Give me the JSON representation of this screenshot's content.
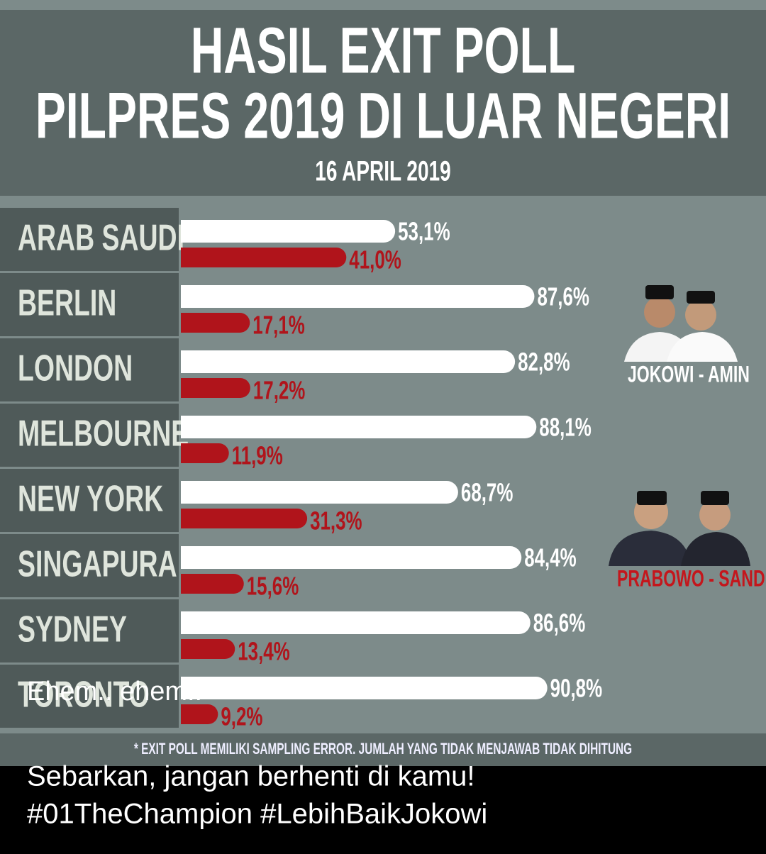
{
  "chart_data": {
    "type": "hbar",
    "title": "HASIL EXIT POLL",
    "subtitle_line": "PILPRES 2019 DI LUAR NEGERI",
    "date": "16 APRIL 2019",
    "footnote": "* EXIT POLL MEMILIKI SAMPLING ERROR. JUMLAH YANG TIDAK MENJAWAB TIDAK DIHITUNG",
    "categories": [
      "ARAB SAUDI",
      "BERLIN",
      "LONDON",
      "MELBOURNE",
      "NEW YORK",
      "SINGAPURA",
      "SYDNEY",
      "TORONTO"
    ],
    "series": [
      {
        "name": "JOKOWI - AMIN",
        "color": "#ffffff",
        "values": [
          53.1,
          87.6,
          82.8,
          88.1,
          68.7,
          84.4,
          86.6,
          90.8
        ],
        "value_labels": [
          "53,1%",
          "87,6%",
          "82,8%",
          "88,1%",
          "68,7%",
          "84,4%",
          "86,6%",
          "90,8%"
        ]
      },
      {
        "name": "PRABOWO - SANDI",
        "color": "#b0141b",
        "values": [
          41.0,
          17.1,
          17.2,
          11.9,
          31.3,
          15.6,
          13.4,
          9.2
        ],
        "value_labels": [
          "41,0%",
          "17,1%",
          "17,2%",
          "11,9%",
          "31,3%",
          "15,6%",
          "13,4%",
          "9,2%"
        ]
      }
    ]
  },
  "overlay": "Ehem.. ehem..",
  "caption": [
    "Sebarkan, jangan berhenti di kamu!",
    "#01TheChampion #LebihBaikJokowi"
  ]
}
